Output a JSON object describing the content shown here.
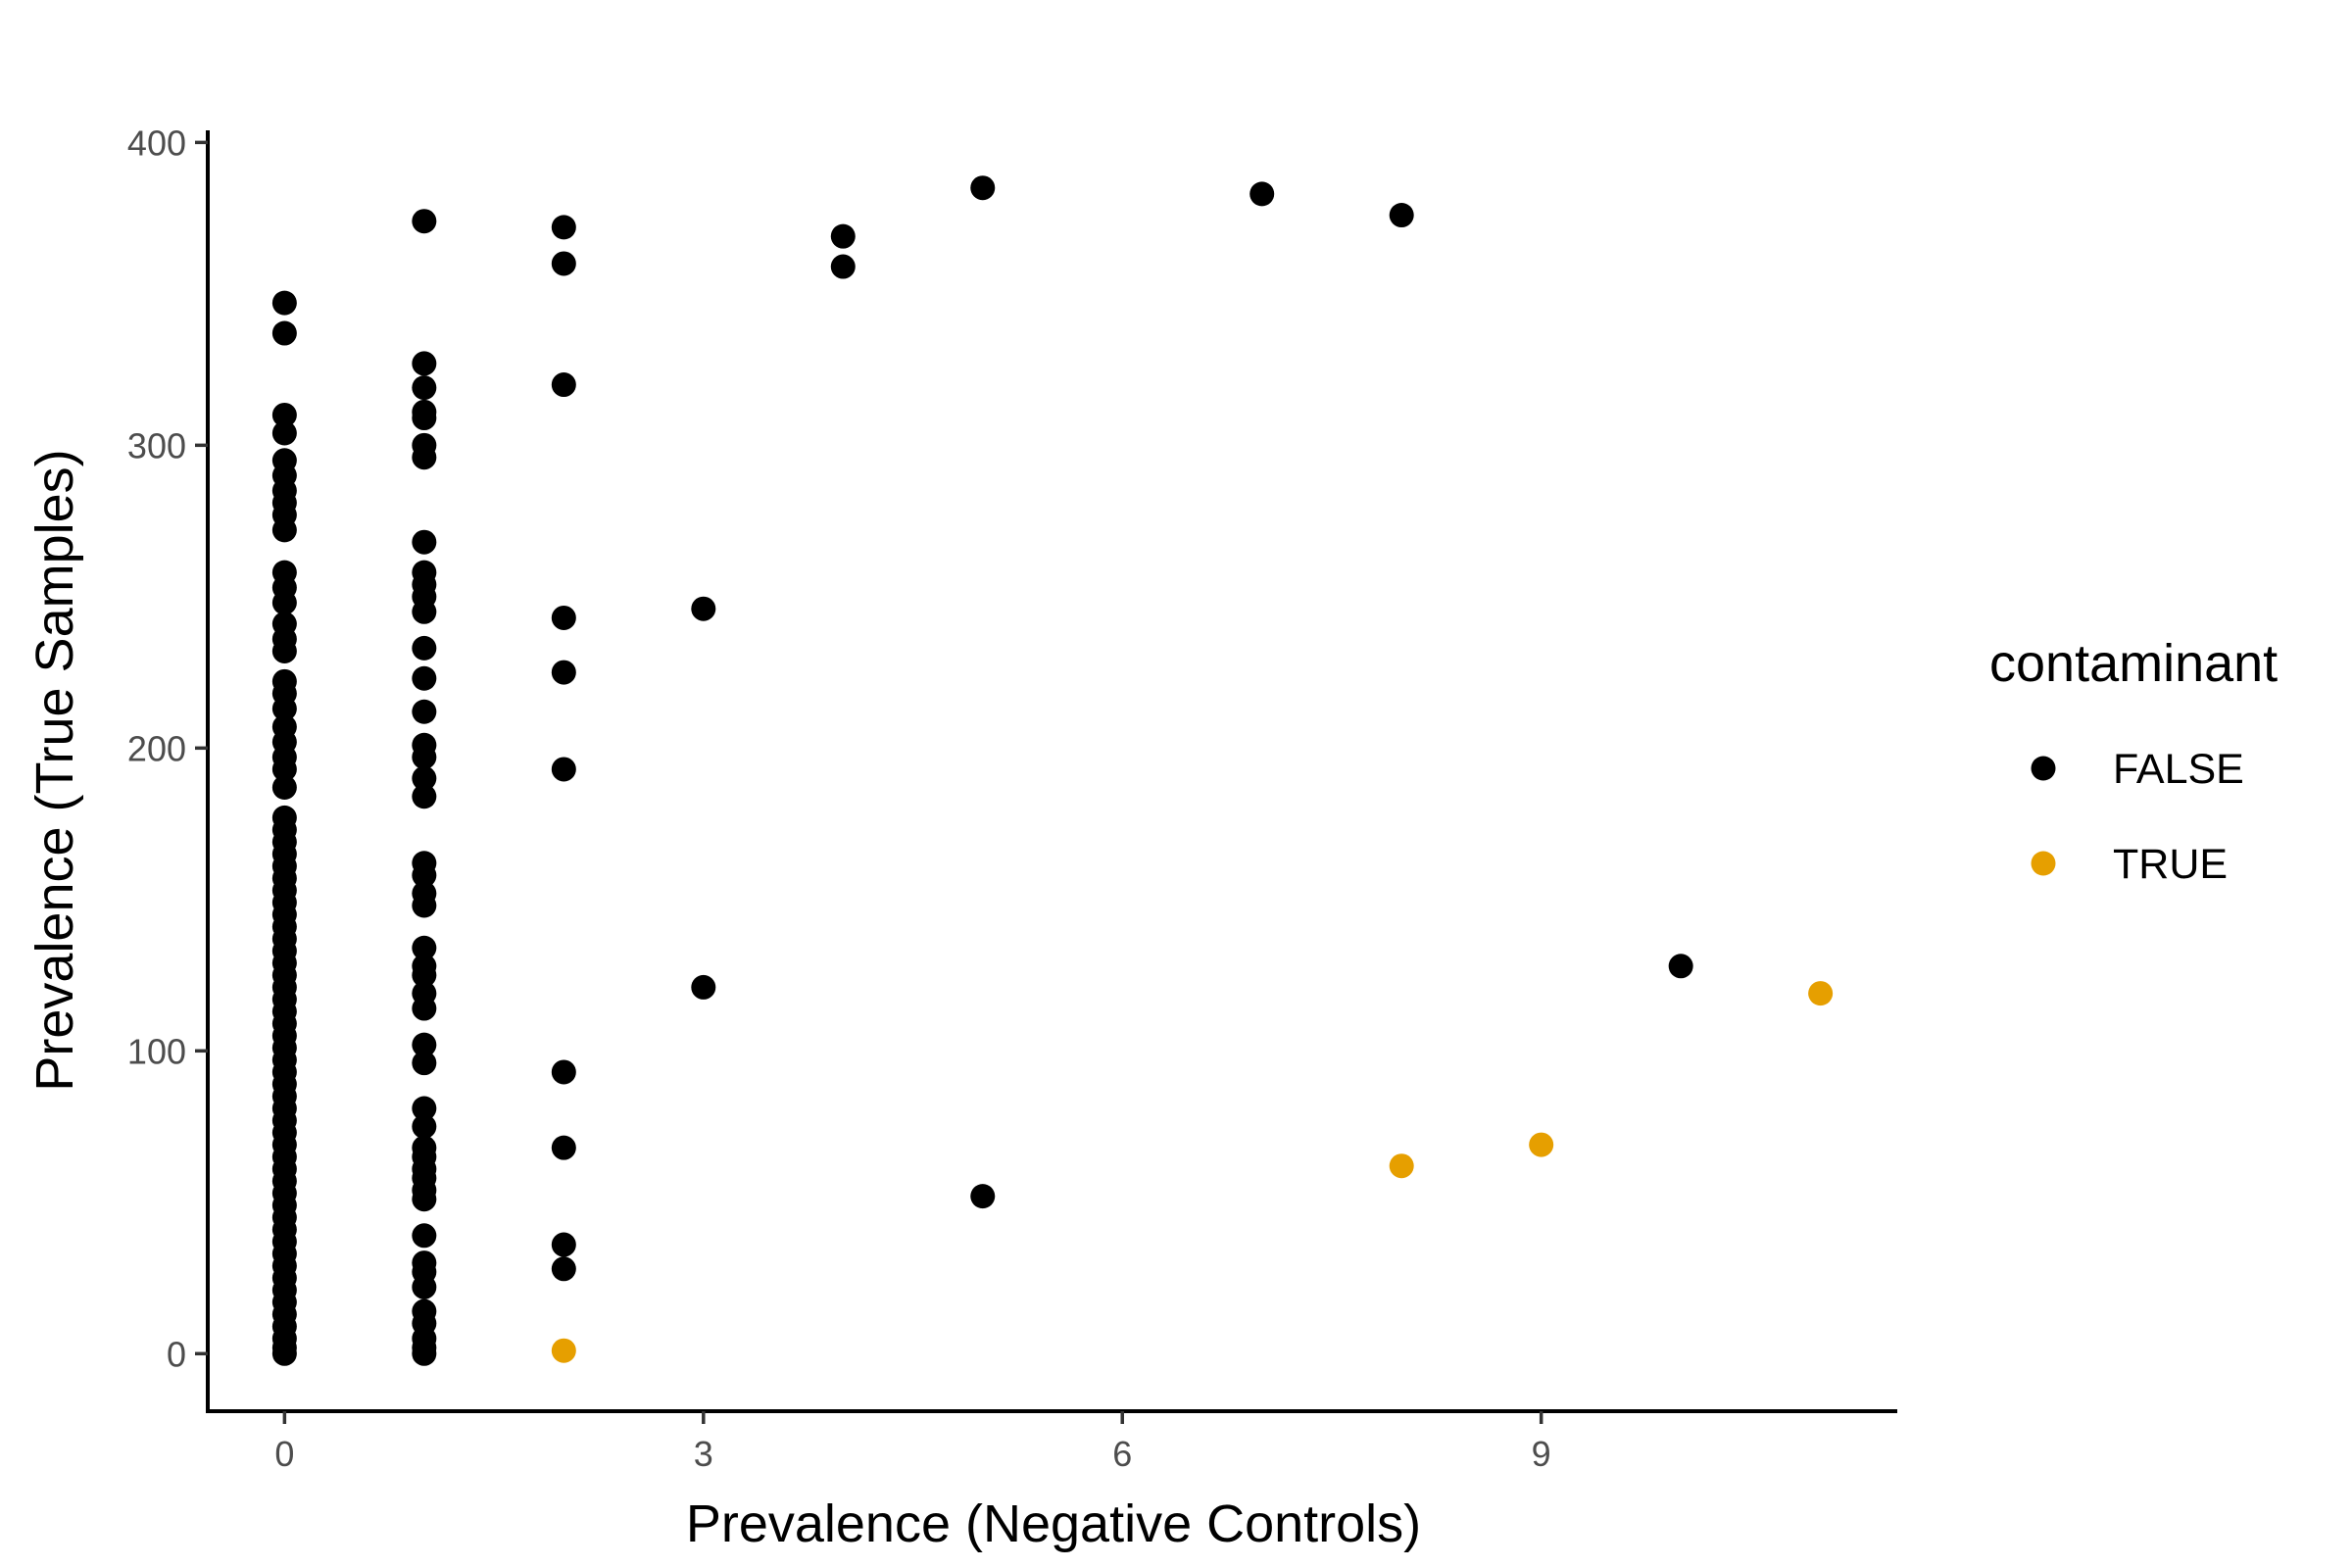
{
  "chart_data": {
    "type": "scatter",
    "xlabel": "Prevalence (Negative Controls)",
    "ylabel": "Prevalence (True Samples)",
    "xlim": [
      -0.55,
      11.55
    ],
    "ylim": [
      -19,
      404
    ],
    "x_ticks": [
      0,
      3,
      6,
      9
    ],
    "y_ticks": [
      0,
      100,
      200,
      300,
      400
    ],
    "x_tick_labels": [
      "0",
      "3",
      "6",
      "9"
    ],
    "y_tick_labels": [
      "0",
      "100",
      "200",
      "300",
      "400"
    ],
    "grid": false,
    "legend": {
      "title": "contaminant",
      "position": "right",
      "entries": [
        {
          "label": "FALSE",
          "color": "#000000"
        },
        {
          "label": "TRUE",
          "color": "#E69F00"
        }
      ]
    },
    "series": [
      {
        "name": "FALSE",
        "color": "#000000",
        "points": [
          [
            0,
            347
          ],
          [
            0,
            337
          ],
          [
            0,
            310
          ],
          [
            0,
            304
          ],
          [
            0,
            295
          ],
          [
            0,
            290
          ],
          [
            0,
            285
          ],
          [
            0,
            281
          ],
          [
            0,
            277
          ],
          [
            0,
            272
          ],
          [
            0,
            258
          ],
          [
            0,
            253
          ],
          [
            0,
            248
          ],
          [
            0,
            241
          ],
          [
            0,
            236
          ],
          [
            0,
            232
          ],
          [
            0,
            222
          ],
          [
            0,
            218
          ],
          [
            0,
            213
          ],
          [
            0,
            207
          ],
          [
            0,
            202
          ],
          [
            0,
            197
          ],
          [
            0,
            193
          ],
          [
            0,
            187
          ],
          [
            0,
            177
          ],
          [
            0,
            173
          ],
          [
            0,
            169
          ],
          [
            0,
            165
          ],
          [
            0,
            161
          ],
          [
            0,
            157
          ],
          [
            0,
            153
          ],
          [
            0,
            149
          ],
          [
            0,
            145
          ],
          [
            0,
            141
          ],
          [
            0,
            137
          ],
          [
            0,
            133
          ],
          [
            0,
            129
          ],
          [
            0,
            125
          ],
          [
            0,
            121
          ],
          [
            0,
            117
          ],
          [
            0,
            113
          ],
          [
            0,
            109
          ],
          [
            0,
            105
          ],
          [
            0,
            101
          ],
          [
            0,
            97
          ],
          [
            0,
            93
          ],
          [
            0,
            89
          ],
          [
            0,
            85
          ],
          [
            0,
            81
          ],
          [
            0,
            77
          ],
          [
            0,
            73
          ],
          [
            0,
            69
          ],
          [
            0,
            65
          ],
          [
            0,
            61
          ],
          [
            0,
            57
          ],
          [
            0,
            53
          ],
          [
            0,
            49
          ],
          [
            0,
            45
          ],
          [
            0,
            41
          ],
          [
            0,
            37
          ],
          [
            0,
            33
          ],
          [
            0,
            29
          ],
          [
            0,
            25
          ],
          [
            0,
            21
          ],
          [
            0,
            17
          ],
          [
            0,
            13
          ],
          [
            0,
            9
          ],
          [
            0,
            5
          ],
          [
            0,
            2
          ],
          [
            0,
            0
          ],
          [
            1,
            374
          ],
          [
            1,
            327
          ],
          [
            1,
            319
          ],
          [
            1,
            311
          ],
          [
            1,
            309
          ],
          [
            1,
            300
          ],
          [
            1,
            296
          ],
          [
            1,
            268
          ],
          [
            1,
            258
          ],
          [
            1,
            254
          ],
          [
            1,
            250
          ],
          [
            1,
            245
          ],
          [
            1,
            233
          ],
          [
            1,
            223
          ],
          [
            1,
            212
          ],
          [
            1,
            201
          ],
          [
            1,
            197
          ],
          [
            1,
            190
          ],
          [
            1,
            184
          ],
          [
            1,
            162
          ],
          [
            1,
            158
          ],
          [
            1,
            152
          ],
          [
            1,
            148
          ],
          [
            1,
            134
          ],
          [
            1,
            128
          ],
          [
            1,
            125
          ],
          [
            1,
            119
          ],
          [
            1,
            114
          ],
          [
            1,
            102
          ],
          [
            1,
            96
          ],
          [
            1,
            81
          ],
          [
            1,
            75
          ],
          [
            1,
            68
          ],
          [
            1,
            65
          ],
          [
            1,
            61
          ],
          [
            1,
            58
          ],
          [
            1,
            54
          ],
          [
            1,
            51
          ],
          [
            1,
            39
          ],
          [
            1,
            30
          ],
          [
            1,
            27
          ],
          [
            1,
            22
          ],
          [
            1,
            14
          ],
          [
            1,
            10
          ],
          [
            1,
            5
          ],
          [
            1,
            2
          ],
          [
            1,
            0
          ],
          [
            2,
            372
          ],
          [
            2,
            360
          ],
          [
            2,
            320
          ],
          [
            2,
            243
          ],
          [
            2,
            225
          ],
          [
            2,
            193
          ],
          [
            2,
            93
          ],
          [
            2,
            68
          ],
          [
            2,
            36
          ],
          [
            2,
            28
          ],
          [
            3,
            246
          ],
          [
            3,
            121
          ],
          [
            4,
            369
          ],
          [
            4,
            359
          ],
          [
            5,
            385
          ],
          [
            5,
            52
          ],
          [
            7,
            383
          ],
          [
            8,
            376
          ],
          [
            10,
            128
          ]
        ]
      },
      {
        "name": "TRUE",
        "color": "#E69F00",
        "points": [
          [
            2,
            1
          ],
          [
            8,
            62
          ],
          [
            9,
            69
          ],
          [
            11,
            119
          ]
        ]
      }
    ]
  }
}
